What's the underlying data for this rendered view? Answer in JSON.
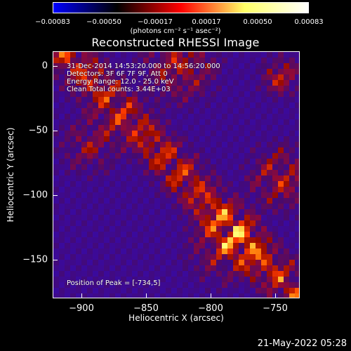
{
  "colorbar": {
    "ticks": [
      "−0.00083",
      "−0.00050",
      "−0.00017",
      "0.00017",
      "0.00050",
      "0.00083"
    ],
    "units": "(photons cm⁻² s⁻¹ asec⁻²)",
    "colors": [
      "#0000ff",
      "#000000",
      "#ff0000",
      "#ffff66",
      "#ffffff"
    ]
  },
  "title": "Reconstructed RHESSI Image",
  "annotations": {
    "time_range": "31-Dec-2014 14:53:20.000 to 14:56:20.000",
    "detectors": "Detectors: 3F 6F 7F 9F, Att 0",
    "energy_range": "Energy Range: 12.0 - 25.0 keV",
    "clean": "Clean    Total counts: 3.44E+03",
    "peak": "Position of Peak = [-734,5]"
  },
  "axes": {
    "xlabel": "Heliocentric X (arcsec)",
    "ylabel": "Heliocentric Y (arcsec)",
    "xticks": [
      "−900",
      "−850",
      "−800",
      "−750"
    ],
    "yticks": [
      "0",
      "−50",
      "−100",
      "−150"
    ]
  },
  "timestamp": "21-May-2022 05:28"
}
